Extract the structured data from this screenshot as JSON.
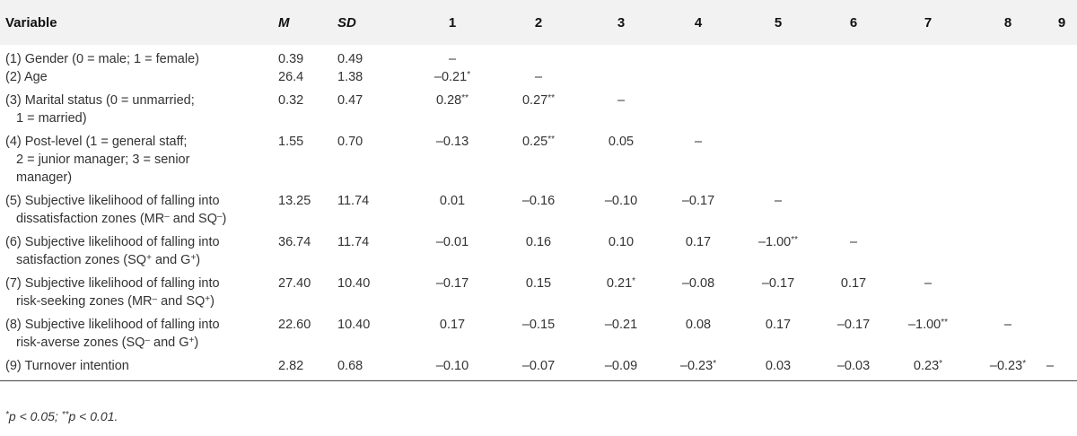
{
  "table": {
    "headers": [
      "Variable",
      "M",
      "SD",
      "1",
      "2",
      "3",
      "4",
      "5",
      "6",
      "7",
      "8",
      "9"
    ],
    "rows": [
      {
        "variable": [
          "(1) Gender (0 = male; 1 = female)"
        ],
        "M": "0.39",
        "SD": "0.49",
        "c": [
          "–",
          "",
          "",
          "",
          "",
          "",
          "",
          "",
          ""
        ]
      },
      {
        "variable": [
          "(2) Age"
        ],
        "M": "26.4",
        "SD": "1.38",
        "c": [
          "–0.21*",
          "–",
          "",
          "",
          "",
          "",
          "",
          "",
          ""
        ]
      },
      {
        "variable": [
          "(3) Marital status (0 = unmarried;",
          "1 = married)"
        ],
        "M": "0.32",
        "SD": "0.47",
        "c": [
          "0.28**",
          "0.27**",
          "–",
          "",
          "",
          "",
          "",
          "",
          ""
        ]
      },
      {
        "variable": [
          "(4) Post-level (1 = general staff;",
          "2 = junior manager; 3 = senior",
          "manager)"
        ],
        "M": "1.55",
        "SD": "0.70",
        "c": [
          "–0.13",
          "0.25**",
          "0.05",
          "–",
          "",
          "",
          "",
          "",
          ""
        ]
      },
      {
        "variable": [
          "(5) Subjective likelihood of falling into",
          "dissatisfaction zones (MR– and SQ–)"
        ],
        "M": "13.25",
        "SD": "11.74",
        "c": [
          "0.01",
          "–0.16",
          "–0.10",
          "–0.17",
          "–",
          "",
          "",
          "",
          ""
        ]
      },
      {
        "variable": [
          "(6) Subjective likelihood of falling into",
          "satisfaction zones (SQ+ and G+)"
        ],
        "M": "36.74",
        "SD": "11.74",
        "c": [
          "–0.01",
          "0.16",
          "0.10",
          "0.17",
          "–1.00**",
          "–",
          "",
          "",
          ""
        ]
      },
      {
        "variable": [
          "(7) Subjective likelihood of falling into",
          "risk-seeking zones (MR– and SQ+)"
        ],
        "M": "27.40",
        "SD": "10.40",
        "c": [
          "–0.17",
          "0.15",
          "0.21*",
          "–0.08",
          "–0.17",
          "0.17",
          "–",
          "",
          ""
        ]
      },
      {
        "variable": [
          "(8) Subjective likelihood of falling into",
          "risk-averse zones (SQ– and G+)"
        ],
        "M": "22.60",
        "SD": "10.40",
        "c": [
          "0.17",
          "–0.15",
          "–0.21",
          "0.08",
          "0.17",
          "–0.17",
          "–1.00**",
          "–",
          ""
        ]
      },
      {
        "variable": [
          "(9) Turnover intention"
        ],
        "M": "2.82",
        "SD": "0.68",
        "c": [
          "–0.10",
          "–0.07",
          "–0.09",
          "–0.23*",
          "0.03",
          "–0.03",
          "0.23*",
          "–0.23*",
          "–"
        ]
      }
    ]
  },
  "footnote": "*p < 0.05; **p < 0.01."
}
